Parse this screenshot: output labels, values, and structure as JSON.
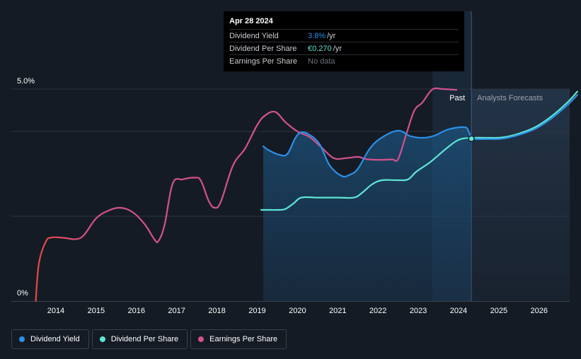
{
  "chart_data": {
    "type": "line",
    "title": "",
    "xlabel": "",
    "ylabel": "",
    "y_tick_labels": [
      "5.0%",
      "0%"
    ],
    "x_tick_labels": [
      "2014",
      "2015",
      "2016",
      "2017",
      "2018",
      "2019",
      "2020",
      "2021",
      "2022",
      "2023",
      "2024",
      "2025",
      "2026"
    ],
    "ylim": [
      0,
      5.0
    ],
    "xlim": [
      2012.7,
      2026.95
    ],
    "regions": {
      "past_label": "Past",
      "forecast_label": "Analysts Forecasts",
      "split_x": 2024.32
    },
    "series": [
      {
        "name": "Earnings Per Share",
        "color": "#d3518f",
        "points": [
          [
            2013.5,
            0.0
          ],
          [
            2013.58,
            0.9
          ],
          [
            2013.75,
            1.4
          ],
          [
            2013.9,
            1.5
          ],
          [
            2014.2,
            1.49
          ],
          [
            2014.5,
            1.46
          ],
          [
            2014.7,
            1.56
          ],
          [
            2015.0,
            1.95
          ],
          [
            2015.3,
            2.13
          ],
          [
            2015.6,
            2.2
          ],
          [
            2015.9,
            2.1
          ],
          [
            2016.2,
            1.82
          ],
          [
            2016.45,
            1.45
          ],
          [
            2016.55,
            1.42
          ],
          [
            2016.7,
            1.8
          ],
          [
            2016.9,
            2.77
          ],
          [
            2017.15,
            2.87
          ],
          [
            2017.45,
            2.91
          ],
          [
            2017.6,
            2.84
          ],
          [
            2017.8,
            2.35
          ],
          [
            2017.95,
            2.2
          ],
          [
            2018.1,
            2.35
          ],
          [
            2018.4,
            3.2
          ],
          [
            2018.7,
            3.6
          ],
          [
            2019.0,
            4.15
          ],
          [
            2019.2,
            4.38
          ],
          [
            2019.45,
            4.46
          ],
          [
            2019.7,
            4.22
          ],
          [
            2020.0,
            4.0
          ],
          [
            2020.3,
            3.87
          ],
          [
            2020.6,
            3.62
          ],
          [
            2020.9,
            3.37
          ],
          [
            2021.2,
            3.37
          ],
          [
            2021.5,
            3.4
          ],
          [
            2021.7,
            3.35
          ],
          [
            2022.0,
            3.33
          ],
          [
            2022.35,
            3.34
          ],
          [
            2022.5,
            3.35
          ],
          [
            2022.7,
            3.93
          ],
          [
            2022.9,
            4.49
          ],
          [
            2023.1,
            4.68
          ],
          [
            2023.35,
            4.99
          ],
          [
            2023.6,
            5.0
          ],
          [
            2023.8,
            4.99
          ],
          [
            2023.95,
            4.98
          ]
        ]
      },
      {
        "name": "Dividend Yield",
        "color": "#2b90e8",
        "points": [
          [
            2019.15,
            3.65
          ],
          [
            2019.3,
            3.55
          ],
          [
            2019.55,
            3.45
          ],
          [
            2019.75,
            3.47
          ],
          [
            2019.95,
            3.85
          ],
          [
            2020.1,
            3.98
          ],
          [
            2020.3,
            3.92
          ],
          [
            2020.55,
            3.7
          ],
          [
            2020.8,
            3.2
          ],
          [
            2021.1,
            2.95
          ],
          [
            2021.3,
            2.98
          ],
          [
            2021.5,
            3.12
          ],
          [
            2021.8,
            3.6
          ],
          [
            2022.1,
            3.86
          ],
          [
            2022.5,
            4.02
          ],
          [
            2022.8,
            3.89
          ],
          [
            2023.1,
            3.85
          ],
          [
            2023.4,
            3.9
          ],
          [
            2023.75,
            4.05
          ],
          [
            2024.15,
            4.1
          ],
          [
            2024.25,
            4.0
          ],
          [
            2024.32,
            3.83
          ]
        ]
      },
      {
        "name": "Dividend Per Share",
        "color": "#5ee6d5",
        "points": [
          [
            2019.1,
            2.15
          ],
          [
            2019.3,
            2.15
          ],
          [
            2019.55,
            2.15
          ],
          [
            2019.7,
            2.17
          ],
          [
            2019.9,
            2.3
          ],
          [
            2020.1,
            2.44
          ],
          [
            2020.5,
            2.44
          ],
          [
            2021.0,
            2.44
          ],
          [
            2021.4,
            2.44
          ],
          [
            2021.6,
            2.55
          ],
          [
            2021.85,
            2.75
          ],
          [
            2022.1,
            2.85
          ],
          [
            2022.5,
            2.85
          ],
          [
            2022.75,
            2.87
          ],
          [
            2022.95,
            3.05
          ],
          [
            2023.3,
            3.28
          ],
          [
            2023.7,
            3.6
          ],
          [
            2024.0,
            3.8
          ],
          [
            2024.32,
            3.85
          ],
          [
            2024.7,
            3.85
          ],
          [
            2025.1,
            3.86
          ],
          [
            2025.5,
            3.95
          ],
          [
            2025.9,
            4.1
          ],
          [
            2026.3,
            4.35
          ],
          [
            2026.7,
            4.68
          ],
          [
            2026.95,
            4.94
          ]
        ]
      },
      {
        "name": "Dividend Yield forecast",
        "color": "#2b90e8",
        "points": [
          [
            2024.32,
            3.82
          ],
          [
            2024.7,
            3.82
          ],
          [
            2025.1,
            3.83
          ],
          [
            2025.5,
            3.92
          ],
          [
            2025.9,
            4.06
          ],
          [
            2026.3,
            4.3
          ],
          [
            2026.7,
            4.62
          ],
          [
            2026.95,
            4.86
          ]
        ]
      }
    ],
    "area_series": "Dividend Yield",
    "highlight_point": {
      "series": "Dividend Yield",
      "x": 2024.32,
      "y": 3.83
    }
  },
  "tooltip": {
    "date": "Apr 28 2024",
    "rows": [
      {
        "label": "Dividend Yield",
        "value": "3.8%",
        "unit": "/yr",
        "color": "#2b90e8"
      },
      {
        "label": "Dividend Per Share",
        "value": "€0.270",
        "unit": "/yr",
        "color": "#5ee6d5"
      },
      {
        "label": "Earnings Per Share",
        "value": "No data",
        "unit": "",
        "color": "#6b7079"
      }
    ]
  },
  "legend": [
    {
      "label": "Dividend Yield",
      "color": "#2b90e8"
    },
    {
      "label": "Dividend Per Share",
      "color": "#5ee6d5"
    },
    {
      "label": "Earnings Per Share",
      "color": "#d3518f"
    }
  ]
}
